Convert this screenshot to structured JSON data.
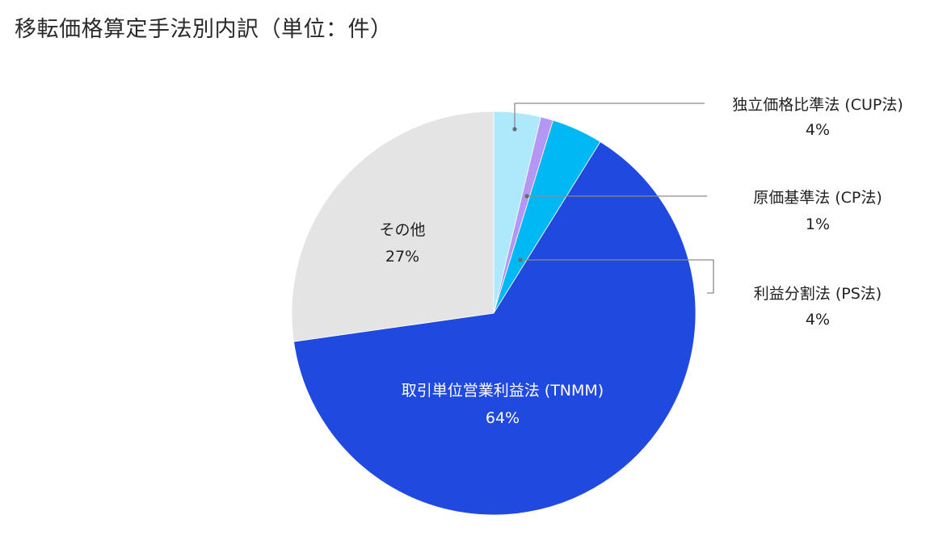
{
  "title": "移転価格算定手法別内訳（単位：件）",
  "chart_data": {
    "type": "pie",
    "title": "移転価格算定手法別内訳（単位：件）",
    "start_angle_deg": 0,
    "direction": "clockwise",
    "slices": [
      {
        "label": "独立価格比準法 (CUP法)",
        "percent_label": "4%",
        "value": 3.75,
        "color": "#ade8fb",
        "label_position": "outside"
      },
      {
        "label": "原価基準法 (CP法)",
        "percent_label": "1%",
        "value": 1.0,
        "color": "#b497f5",
        "label_position": "outside"
      },
      {
        "label": "利益分割法 (PS法)",
        "percent_label": "4%",
        "value": 4.1,
        "color": "#00b8f4",
        "label_position": "outside"
      },
      {
        "label": "取引単位営業利益法 (TNMM)",
        "percent_label": "64%",
        "value": 63.9,
        "color": "#2049df",
        "label_position": "inside"
      },
      {
        "label": "その他",
        "percent_label": "27%",
        "value": 27.25,
        "color": "#e4e4e4",
        "label_position": "inside"
      }
    ],
    "legend": "none"
  },
  "labels": {
    "cup": {
      "name": "独立価格比準法 (CUP法)",
      "pct": "4%"
    },
    "cp": {
      "name": "原価基準法 (CP法)",
      "pct": "1%"
    },
    "ps": {
      "name": "利益分割法 (PS法)",
      "pct": "4%"
    },
    "tnmm": {
      "name": "取引単位営業利益法 (TNMM)",
      "pct": "64%"
    },
    "other": {
      "name": "その他",
      "pct": "27%"
    }
  }
}
